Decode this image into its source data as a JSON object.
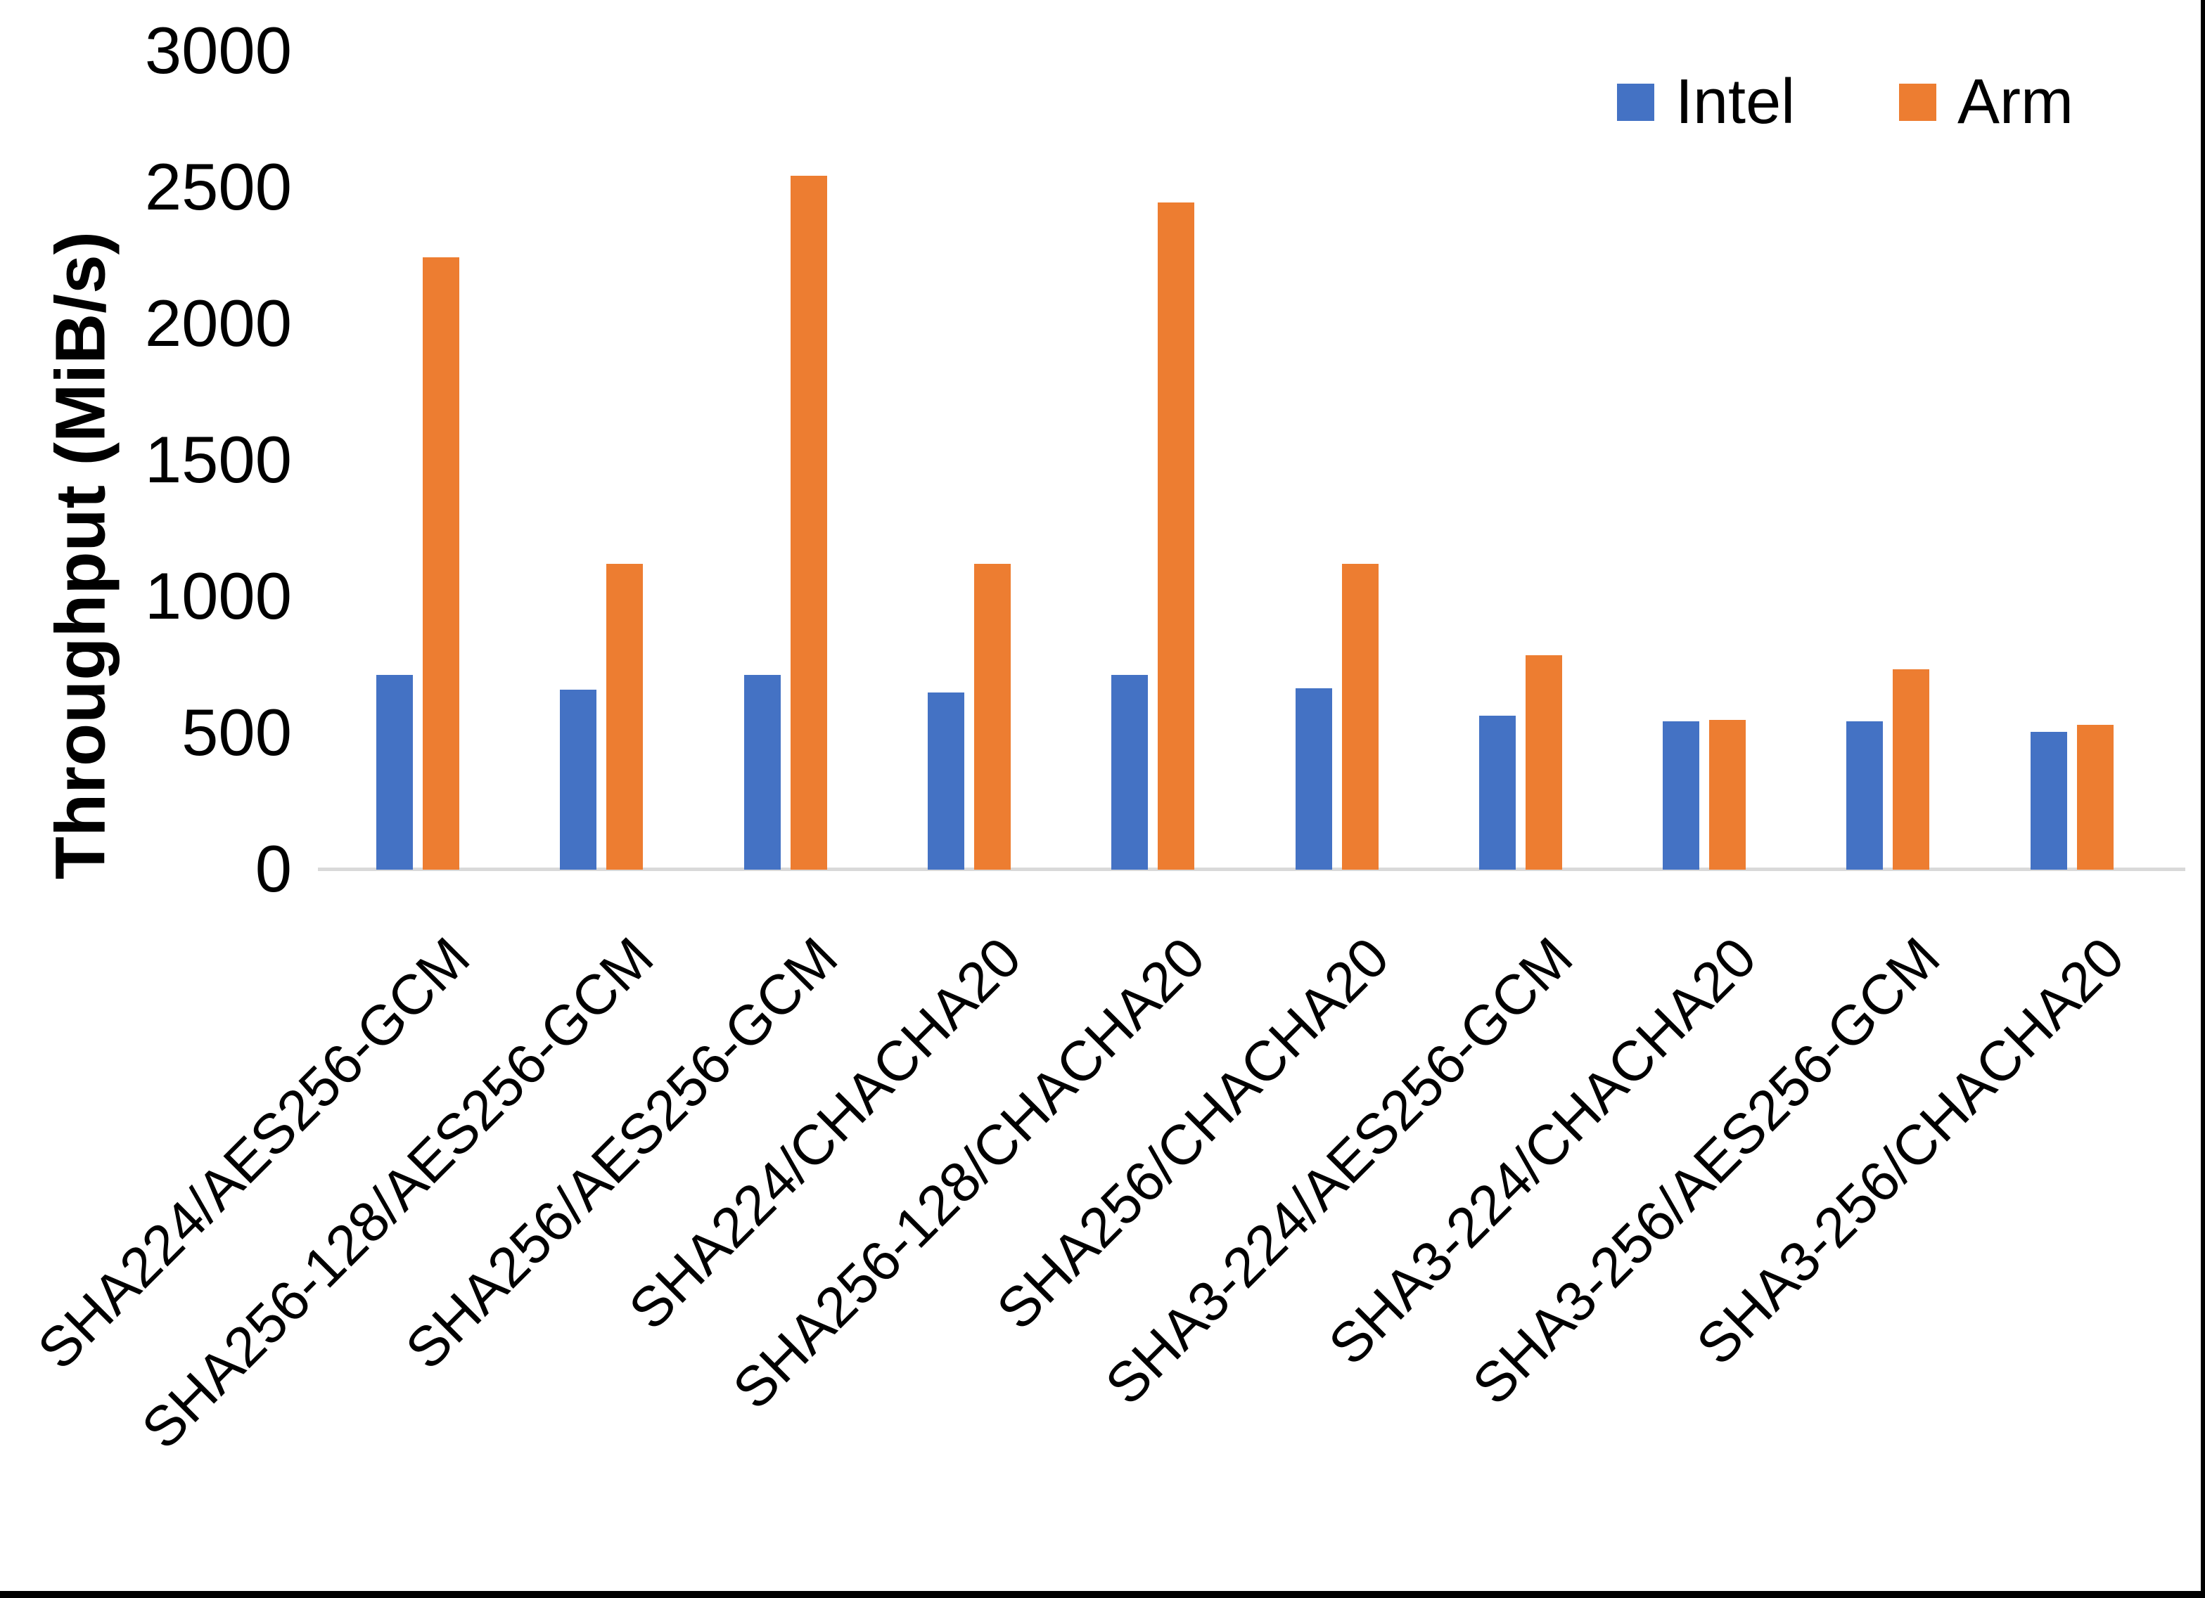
{
  "chart_data": {
    "type": "bar",
    "title": "",
    "xlabel": "",
    "ylabel": "Throughput (MiB/s)",
    "ylim": [
      0,
      3000
    ],
    "yticks": [
      0,
      500,
      1000,
      1500,
      2000,
      2500,
      3000
    ],
    "grid": false,
    "legend_position": "top-right",
    "categories": [
      "SHA224/AES256-GCM",
      "SHA256-128/AES256-GCM",
      "SHA256/AES256-GCM",
      "SHA224/CHACHA20",
      "SHA256-128/CHACHA20",
      "SHA256/CHACHA20",
      "SHA3-224/AES256-GCM",
      "SHA3-224/CHACHA20",
      "SHA3-256/AES256-GCM",
      "SHA3-256/CHACHA20"
    ],
    "series": [
      {
        "name": "Intel",
        "color": "#4472C4",
        "values": [
          715,
          660,
          715,
          650,
          715,
          665,
          565,
          545,
          545,
          505
        ]
      },
      {
        "name": "Arm",
        "color": "#ED7D31",
        "values": [
          2245,
          1120,
          2545,
          1120,
          2445,
          1120,
          785,
          550,
          735,
          530
        ]
      }
    ],
    "axis_line_color": "#D9D9D9",
    "text_color": "#000000"
  }
}
